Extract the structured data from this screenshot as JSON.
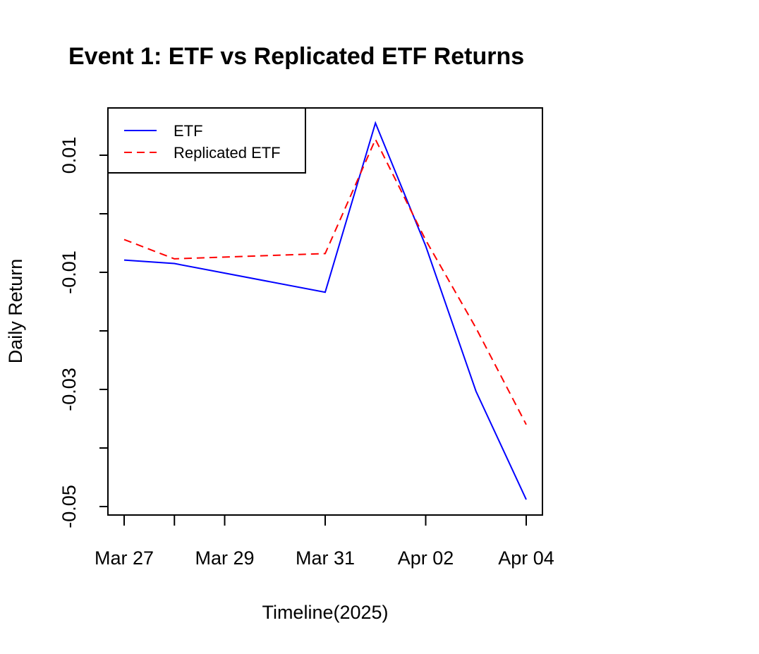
{
  "chart_data": {
    "type": "line",
    "title": "Event 1: ETF vs Replicated ETF Returns",
    "xlabel": "Timeline(2025)",
    "ylabel": "Daily Return",
    "x": [
      "2025-03-27",
      "2025-03-28",
      "2025-03-31",
      "2025-04-01",
      "2025-04-02",
      "2025-04-03",
      "2025-04-04"
    ],
    "xlim": [
      "2025-03-27",
      "2025-04-04"
    ],
    "ylim": [
      -0.05,
      0.015
    ],
    "x_ticks": [
      {
        "date": "2025-03-27",
        "label": "Mar 27"
      },
      {
        "date": "2025-03-28",
        "label": ""
      },
      {
        "date": "2025-03-29",
        "label": "Mar 29"
      },
      {
        "date": "2025-03-31",
        "label": "Mar 31"
      },
      {
        "date": "2025-04-02",
        "label": "Apr 02"
      },
      {
        "date": "2025-04-04",
        "label": "Apr 04"
      }
    ],
    "y_ticks": [
      {
        "value": 0.01,
        "label": "0.01"
      },
      {
        "value": 0.0,
        "label": ""
      },
      {
        "value": -0.01,
        "label": "-0.01"
      },
      {
        "value": -0.02,
        "label": ""
      },
      {
        "value": -0.03,
        "label": "-0.03"
      },
      {
        "value": -0.04,
        "label": ""
      },
      {
        "value": -0.05,
        "label": "-0.05"
      }
    ],
    "series": [
      {
        "name": "ETF",
        "color": "#0000ff",
        "dash": "solid",
        "values": [
          -0.0079,
          -0.0085,
          -0.0134,
          0.0155,
          -0.0055,
          -0.0303,
          -0.0488
        ]
      },
      {
        "name": "Replicated ETF",
        "color": "#ff0000",
        "dash": "dashed",
        "values": [
          -0.0044,
          -0.0077,
          -0.0068,
          0.0127,
          -0.0045,
          -0.0195,
          -0.036
        ]
      }
    ],
    "legend": "top-left",
    "grid": false
  }
}
